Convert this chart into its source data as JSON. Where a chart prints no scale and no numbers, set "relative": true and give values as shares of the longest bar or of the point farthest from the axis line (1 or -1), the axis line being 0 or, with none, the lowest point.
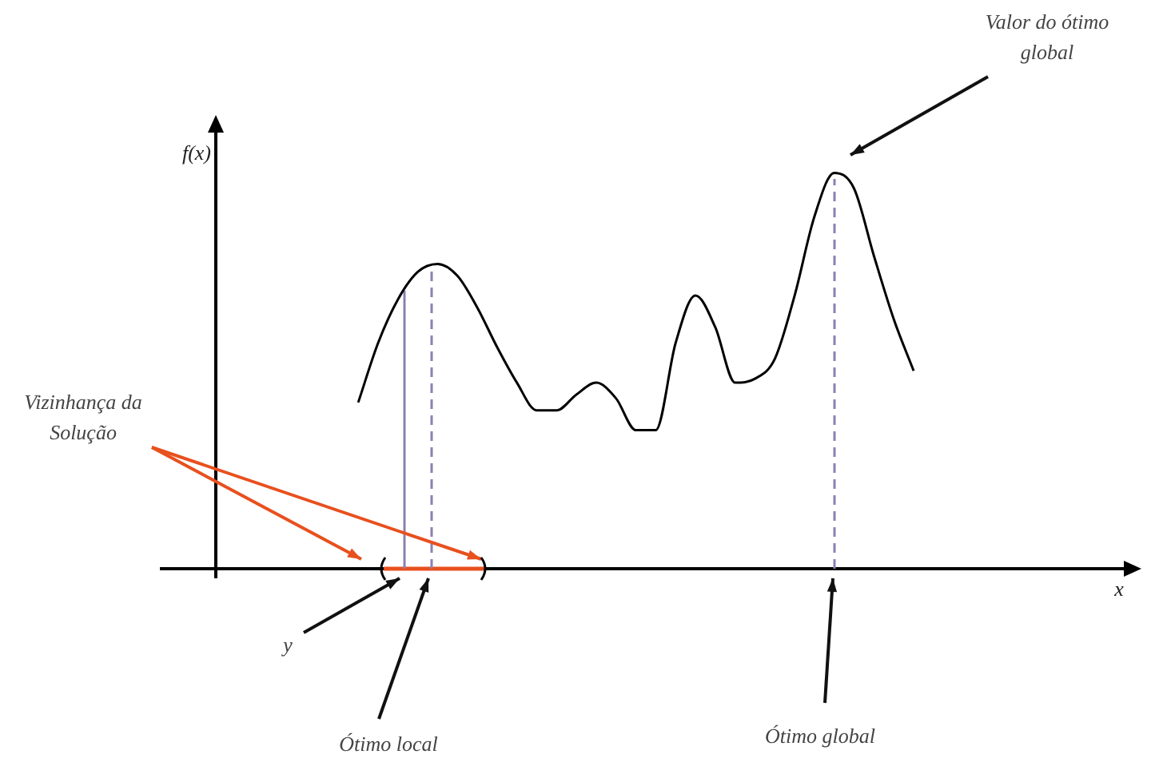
{
  "chart_data": {
    "type": "line",
    "relative": true,
    "xlabel": "x",
    "ylabel": "f(x)",
    "marker": "none",
    "line_style": "solid",
    "categories": [
      null,
      null,
      null,
      null,
      null,
      null,
      null,
      null,
      null,
      null,
      null,
      null,
      null,
      null,
      null,
      null,
      null,
      null,
      null,
      null,
      null,
      null,
      null,
      null,
      null,
      null,
      null,
      null,
      null,
      null,
      null,
      null,
      null,
      null,
      null,
      null,
      null,
      null,
      null,
      null,
      null,
      null,
      null,
      null,
      null,
      null,
      null,
      null,
      null,
      null
    ],
    "series": [
      {
        "color": "#000000",
        "values": [
          null,
          null,
          null,
          null,
          null,
          null,
          null,
          null,
          null,
          null,
          0.42,
          0.57,
          0.68,
          0.75,
          0.77,
          0.74,
          0.66,
          0.56,
          0.47,
          0.4,
          0.4,
          0.44,
          0.47,
          0.43,
          0.35,
          0.35,
          0.57,
          0.69,
          0.61,
          0.47,
          0.48,
          0.53,
          0.69,
          0.89,
          1,
          0.96,
          0.79,
          0.63,
          0.5,
          null,
          null,
          null,
          null,
          null,
          null,
          null,
          null,
          null,
          null,
          null
        ]
      }
    ],
    "annotations": [
      "Valor do ótimo global",
      "Vizinhança da Solução",
      "y",
      "Ótimo local",
      "Ótimo global"
    ]
  }
}
